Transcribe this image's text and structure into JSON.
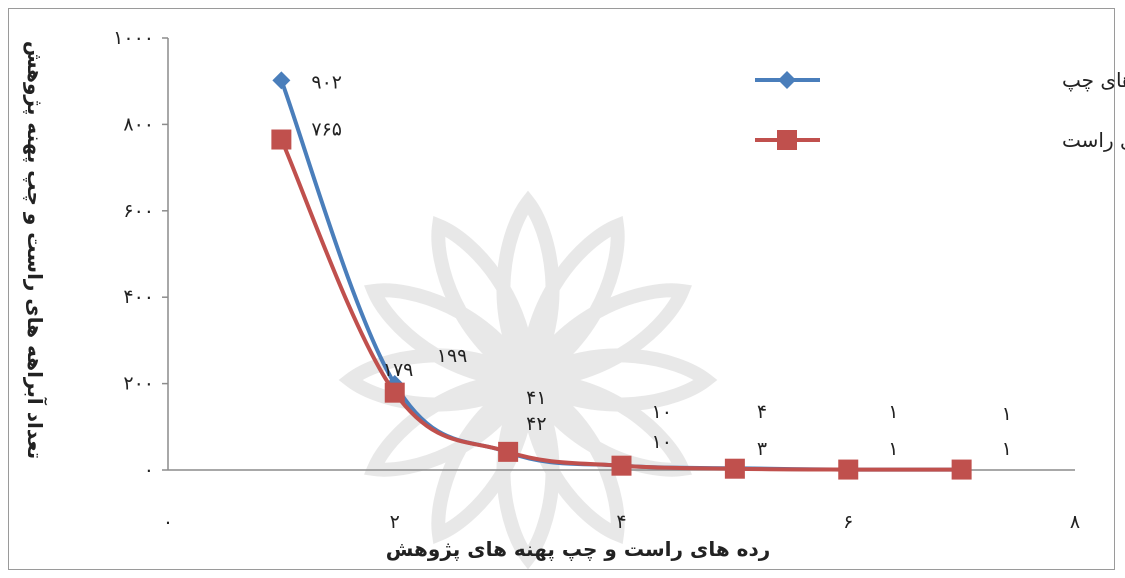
{
  "chart_data": {
    "type": "line",
    "xlabel": "رده های راست و چپ پهنه های پژوهش",
    "ylabel": "تعداد آبراهه های راست و چپ پهنه پژوهش",
    "xlim": [
      0,
      8
    ],
    "ylim": [
      0,
      1000
    ],
    "x_ticks": [
      0,
      2,
      4,
      6,
      8
    ],
    "x_tick_labels": [
      "۰",
      "۲",
      "۴",
      "۶",
      "۸"
    ],
    "y_ticks": [
      0,
      200,
      400,
      600,
      800,
      1000
    ],
    "y_tick_labels": [
      "۰",
      "۲۰۰",
      "۴۰۰",
      "۶۰۰",
      "۸۰۰",
      "۱۰۰۰"
    ],
    "grid": false,
    "legend_position": "top-right",
    "series": [
      {
        "name": "تعدادآبراهه های چپ",
        "color": "#4a7ebb",
        "marker": "diamond",
        "x": [
          1,
          2,
          3,
          4,
          5,
          6,
          7
        ],
        "values": [
          902,
          199,
          41,
          10,
          4,
          1,
          1
        ],
        "data_labels": [
          "۹۰۲",
          "۱۹۹",
          "۴۱",
          "۱۰",
          "۴",
          "۱",
          "۱"
        ]
      },
      {
        "name": "تعداد آبراهه های راست",
        "color": "#c0504d",
        "marker": "square",
        "x": [
          1,
          2,
          3,
          4,
          5,
          6,
          7
        ],
        "values": [
          765,
          179,
          42,
          10,
          3,
          1,
          1
        ],
        "data_labels": [
          "۷۶۵",
          "۱۷۹",
          "۴۲",
          "۱۰",
          "۳",
          "۱",
          "۱"
        ]
      }
    ]
  }
}
